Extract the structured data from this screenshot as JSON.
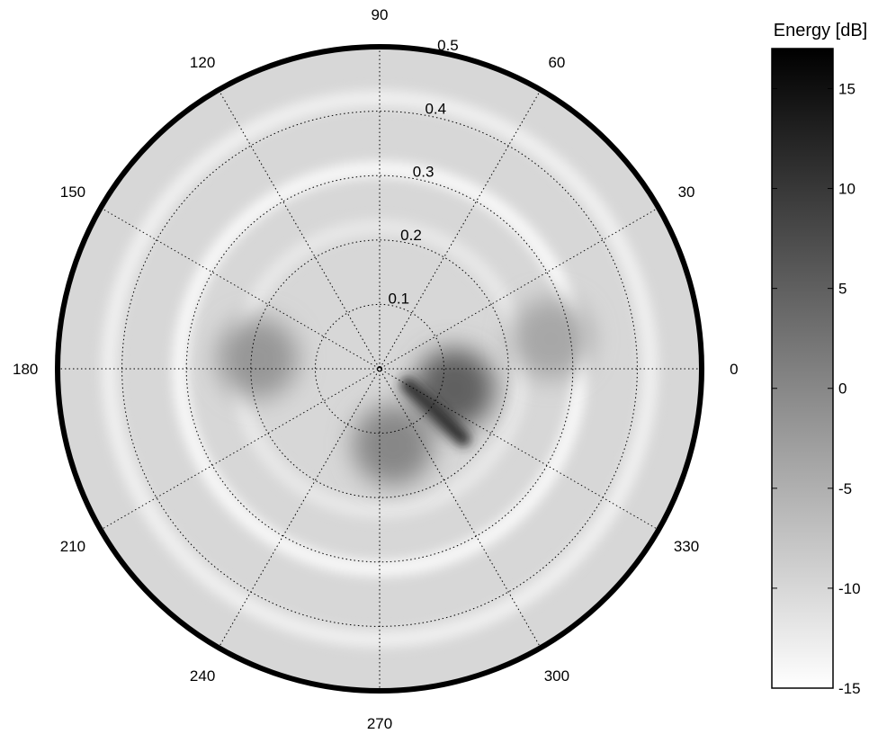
{
  "chart_data": {
    "type": "heatmap",
    "subtype": "polar",
    "angle_ticks": [
      "0",
      "30",
      "60",
      "90",
      "120",
      "150",
      "180",
      "210",
      "240",
      "270",
      "300",
      "330"
    ],
    "radius_ticks": [
      "0.1",
      "0.2",
      "0.3",
      "0.4",
      "0.5"
    ],
    "r_lim": [
      0,
      0.5
    ],
    "grid": true,
    "colorbar": {
      "title": "Energy [dB]",
      "ticks": [
        "15",
        "10",
        "5",
        "0",
        "-5",
        "-10",
        "-15"
      ],
      "range": [
        -15,
        17
      ],
      "colormap": "gray-reversed",
      "position": "right"
    },
    "features": [
      {
        "kind": "background",
        "level": -10
      },
      {
        "kind": "ring",
        "r": 0.31,
        "level": -14
      },
      {
        "kind": "ring",
        "r": 0.42,
        "level": -13
      },
      {
        "kind": "ring",
        "r": 0.22,
        "level": -12
      },
      {
        "kind": "blob",
        "angle": 345,
        "r": 0.12,
        "level": 5
      },
      {
        "kind": "ridge",
        "angle_start": 330,
        "angle_end": 320,
        "r_start": 0.05,
        "r_end": 0.17,
        "level": 12
      },
      {
        "kind": "blob",
        "angle": 175,
        "r": 0.19,
        "level": -2
      },
      {
        "kind": "blob",
        "angle": 280,
        "r": 0.12,
        "level": 0
      },
      {
        "kind": "blob",
        "angle": 10,
        "r": 0.27,
        "level": -4
      }
    ]
  }
}
